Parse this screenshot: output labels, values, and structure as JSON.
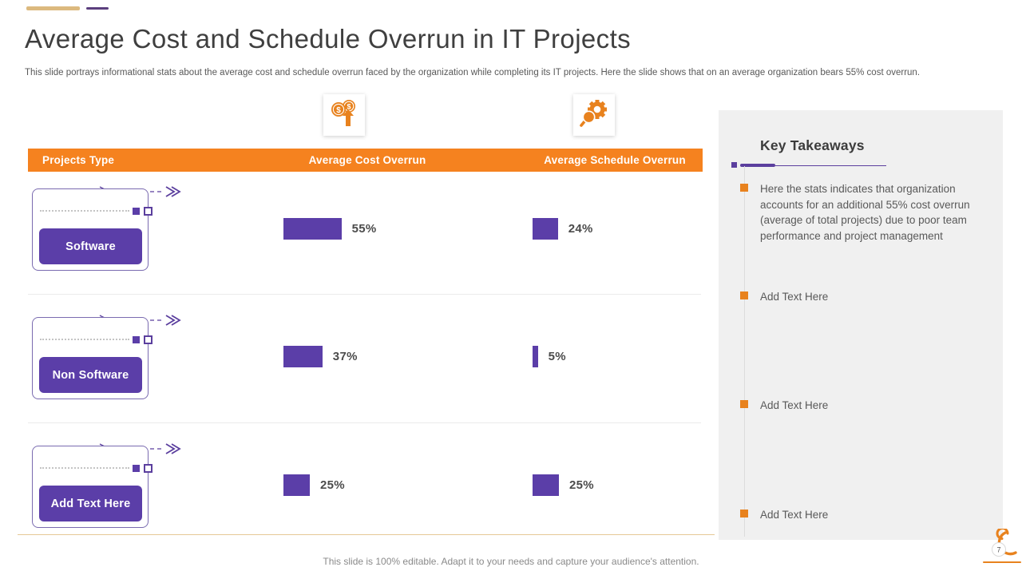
{
  "slide": {
    "title": "Average Cost and Schedule Overrun in IT Projects",
    "subtitle": "This slide portrays informational stats about the average cost and schedule overrun faced by the organization while completing its IT projects. Here the slide shows that on an average organization bears 55% cost overrun.",
    "footer": "This slide is 100% editable. Adapt it to your needs and capture your audience's attention.",
    "page_number": "7"
  },
  "icons": [
    {
      "name": "dollar-coins-growth-icon",
      "meaning": "rising cost (two dollar coins with up arrow)"
    },
    {
      "name": "gear-magnifier-icon",
      "meaning": "schedule inspection (gear with magnifying glass)"
    }
  ],
  "table": {
    "headers": [
      "Projects Type",
      "Average Cost Overrun",
      "Average Schedule Overrun"
    ],
    "rows": [
      {
        "label": "Software",
        "cost_pct": 55,
        "cost_label": "55%",
        "schedule_pct": 24,
        "schedule_label": "24%"
      },
      {
        "label": "Non Software",
        "cost_pct": 37,
        "cost_label": "37%",
        "schedule_pct": 5,
        "schedule_label": "5%"
      },
      {
        "label": "Add Text Here",
        "cost_pct": 25,
        "cost_label": "25%",
        "schedule_pct": 25,
        "schedule_label": "25%"
      }
    ]
  },
  "takeaways": {
    "title": "Key Takeaways",
    "items": [
      "Here the stats indicates that organization accounts for an additional 55% cost overrun (average of total projects) due to poor team performance and project management",
      "Add Text Here",
      "Add Text Here",
      "Add Text Here"
    ]
  },
  "chart_data": {
    "type": "bar",
    "orientation": "horizontal",
    "title": "Average Cost and Schedule Overrun in IT Projects",
    "categories": [
      "Software",
      "Non Software",
      "Add Text Here"
    ],
    "series": [
      {
        "name": "Average Cost Overrun",
        "values": [
          55,
          37,
          25
        ]
      },
      {
        "name": "Average Schedule Overrun",
        "values": [
          24,
          5,
          25
        ]
      }
    ],
    "unit": "%",
    "bar_color": "#5B3EA8",
    "value_labels_shown": true,
    "axis_shown": false
  },
  "colors": {
    "header_orange": "#F5821F",
    "icon_orange": "#E8821E",
    "bar_purple": "#5B3EA8",
    "border_purple": "#7A6BB0",
    "accent_tan": "#DCB97E",
    "accent_dark_purple": "#5B3F7E",
    "panel_bg": "#F0F0F0",
    "title_text": "#3F3F3F",
    "body_text": "#595959"
  }
}
